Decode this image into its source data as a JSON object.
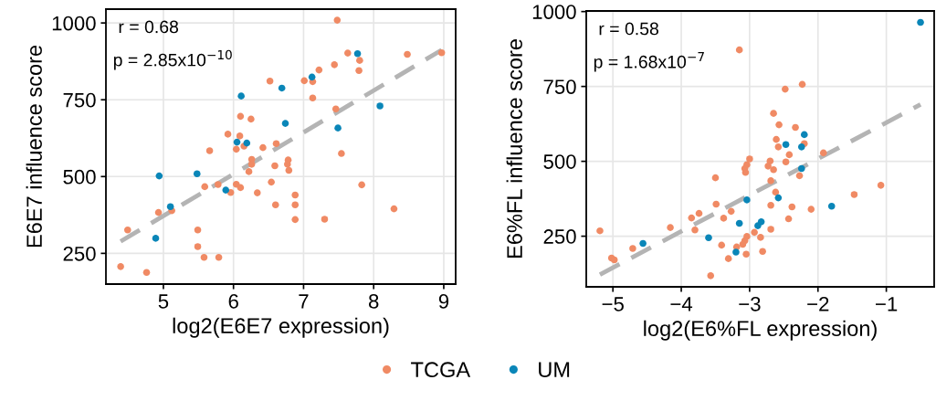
{
  "chart_data": [
    {
      "type": "scatter",
      "xlabel": "log2(E6E7 expression)",
      "ylabel": "E6E7 influence score",
      "xlim": [
        4.18,
        9.17
      ],
      "ylim": [
        150,
        1045
      ],
      "xticks": [
        5,
        6,
        7,
        8,
        9
      ],
      "yticks": [
        250,
        500,
        750,
        1000
      ],
      "grid": true,
      "legend": "bottom",
      "marker": "circle",
      "annotations": [
        "r = 0.68",
        "p = 2.85x10$^{−10}$"
      ],
      "series": [
        {
          "name": "TCGA",
          "color": "#f08a64",
          "x": [
            7.48,
            7.63,
            8.48,
            8.97,
            7.8,
            7.79,
            7.44,
            7.22,
            7.13,
            7.01,
            6.52,
            7.13,
            7.46,
            6.1,
            6.25,
            5.92,
            6.09,
            6.15,
            6.61,
            5.66,
            6.04,
            6.42,
            7.54,
            6.26,
            6.78,
            6.26,
            6.59,
            6.77,
            6.79,
            6.22,
            6.54,
            7.83,
            5.59,
            5.78,
            6.04,
            6.1,
            5.96,
            6.34,
            6.88,
            5.12,
            4.93,
            6.6,
            6.88,
            8.29,
            6.88,
            7.3,
            4.49,
            5.49,
            5.49,
            5.58,
            5.79,
            4.39,
            4.76
          ],
          "values": [
            1009,
            902,
            898,
            903,
            878,
            845,
            864,
            847,
            809,
            812,
            811,
            756,
            720,
            696,
            687,
            638,
            632,
            599,
            607,
            584,
            589,
            594,
            575,
            556,
            554,
            540,
            535,
            540,
            520,
            516,
            482,
            473,
            467,
            474,
            475,
            464,
            448,
            447,
            440,
            389,
            383,
            408,
            408,
            395,
            360,
            361,
            326,
            326,
            272,
            237,
            237,
            207,
            188
          ]
        },
        {
          "name": "UM",
          "color": "#0a86b8",
          "x": [
            7.77,
            7.12,
            6.69,
            6.11,
            8.09,
            6.74,
            7.49,
            6.05,
            6.19,
            4.94,
            5.48,
            5.89,
            5.1,
            4.89
          ],
          "values": [
            900,
            824,
            788,
            762,
            730,
            673,
            658,
            612,
            609,
            502,
            509,
            456,
            402,
            299
          ]
        },
        {
          "type": "line",
          "color": "#b4b4b4",
          "line_style": "dashed",
          "marker": "none",
          "x": [
            4.39,
            8.97
          ],
          "values": [
            289,
            912
          ]
        }
      ]
    },
    {
      "type": "scatter",
      "xlabel": "log2(E6%FL expression)",
      "ylabel": "E6%FL influence score",
      "xlim": [
        -5.39,
        -0.3
      ],
      "ylim": [
        81,
        1002
      ],
      "xticks": [
        {
          "value": -5,
          "label": "−5"
        },
        {
          "value": -4,
          "label": "−4"
        },
        {
          "value": -3,
          "label": "−3"
        },
        {
          "value": -2,
          "label": "−2"
        },
        {
          "value": -1,
          "label": "−1"
        }
      ],
      "yticks": [
        250,
        500,
        750,
        1000
      ],
      "grid": true,
      "legend": "bottom",
      "marker": "circle",
      "annotations": [
        "r = 0.58",
        "p = 1.68x10$^{−7}$"
      ],
      "series": [
        {
          "name": "TCGA",
          "color": "#f08a64",
          "x": [
            -3.15,
            -2.23,
            -2.48,
            -2.65,
            -2.57,
            -2.33,
            -2.61,
            -2.2,
            -2.58,
            -2.42,
            -1.92,
            -3.0,
            -2.7,
            -2.47,
            -3.04,
            -2.73,
            -3.07,
            -2.65,
            -3.06,
            -2.27,
            -3.5,
            -2.69,
            -1.08,
            -2.62,
            -1.47,
            -3.49,
            -2.69,
            -2.38,
            -2.1,
            -3.74,
            -3.27,
            -3.85,
            -3.38,
            -2.43,
            -4.16,
            -3.8,
            -2.69,
            -5.19,
            -2.93,
            -3.04,
            -2.84,
            -3.07,
            -3.1,
            -3.41,
            -3.19,
            -4.71,
            -2.81,
            -3.05,
            -5.02,
            -4.98,
            -3.31,
            -3.57
          ],
          "values": [
            872,
            757,
            741,
            660,
            622,
            613,
            573,
            559,
            548,
            522,
            528,
            508,
            501,
            498,
            489,
            484,
            476,
            472,
            463,
            452,
            445,
            435,
            420,
            397,
            389,
            357,
            353,
            348,
            340,
            326,
            333,
            311,
            310,
            308,
            279,
            271,
            273,
            268,
            263,
            249,
            246,
            235,
            223,
            220,
            214,
            209,
            199,
            190,
            177,
            171,
            175,
            118
          ]
        },
        {
          "name": "UM",
          "color": "#0a86b8",
          "x": [
            -0.5,
            -2.2,
            -2.47,
            -2.24,
            -2.24,
            -2.58,
            -3.04,
            -1.8,
            -3.15,
            -2.83,
            -2.88,
            -3.6,
            -4.56,
            -3.2
          ],
          "values": [
            964,
            589,
            556,
            548,
            476,
            378,
            371,
            350,
            293,
            298,
            285,
            245,
            226,
            197
          ]
        },
        {
          "type": "line",
          "color": "#b4b4b4",
          "line_style": "dashed",
          "marker": "none",
          "x": [
            -5.19,
            -0.5
          ],
          "values": [
            122,
            690
          ]
        }
      ]
    }
  ]
}
